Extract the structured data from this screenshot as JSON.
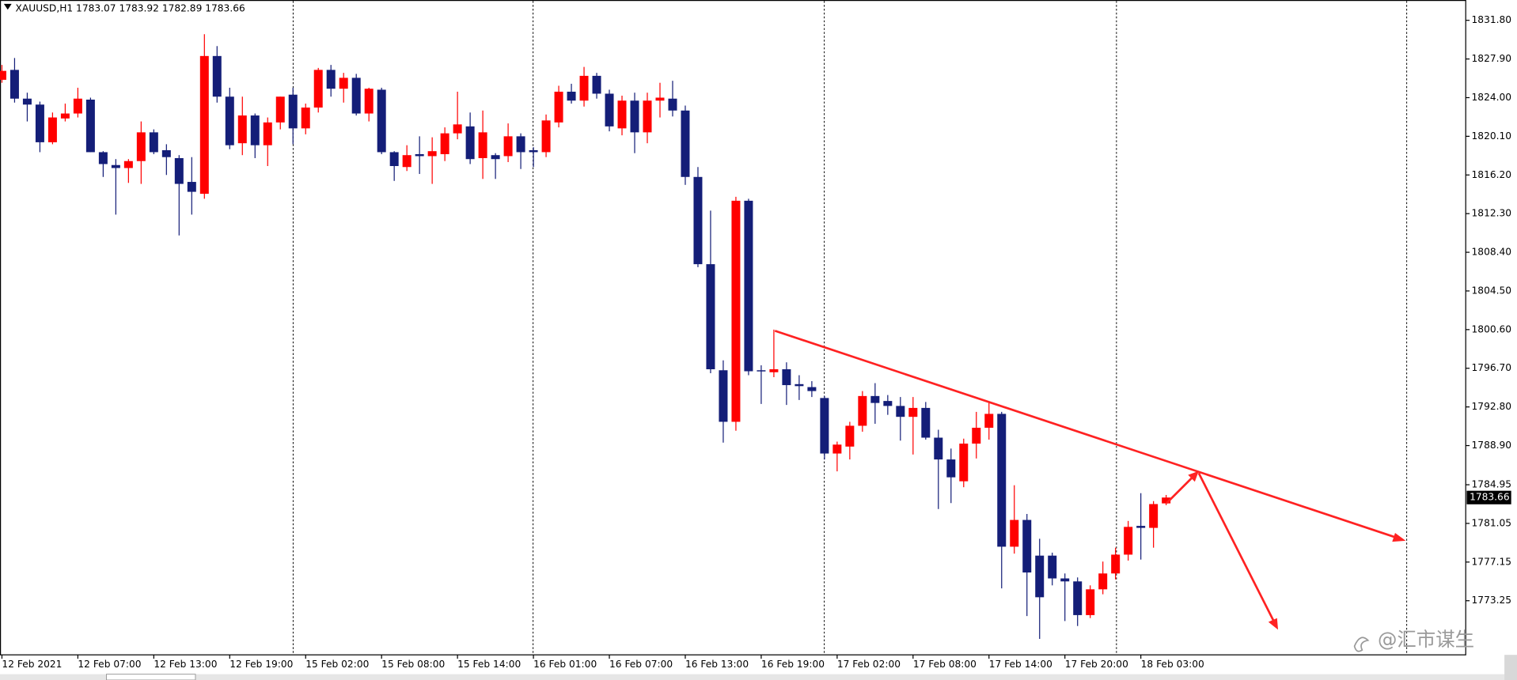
{
  "chart_data": {
    "type": "candlestick",
    "title": "XAUUSD,H1  1783.07 1783.92 1782.89 1783.66",
    "categories": [
      "12 Feb 2021",
      null,
      null,
      null,
      null,
      null,
      "12 Feb 07:00",
      null,
      null,
      null,
      null,
      null,
      "12 Feb 13:00",
      null,
      null,
      null,
      null,
      null,
      "12 Feb 19:00",
      null,
      null,
      null,
      null,
      null,
      "15 Feb 02:00",
      null,
      null,
      null,
      null,
      null,
      "15 Feb 08:00",
      null,
      null,
      null,
      null,
      null,
      "15 Feb 14:00",
      null,
      null,
      null,
      null,
      null,
      "16 Feb 01:00",
      null,
      null,
      null,
      null,
      null,
      "16 Feb 07:00",
      null,
      null,
      null,
      null,
      null,
      "16 Feb 13:00",
      null,
      null,
      null,
      null,
      null,
      "16 Feb 19:00",
      null,
      null,
      null,
      null,
      null,
      "17 Feb 02:00",
      null,
      null,
      null,
      null,
      null,
      "17 Feb 08:00",
      null,
      null,
      null,
      null,
      null,
      "17 Feb 14:00",
      null,
      null,
      null,
      null,
      null,
      "17 Feb 20:00",
      null,
      null,
      null,
      null,
      null,
      "18 Feb 03:00",
      null,
      null
    ],
    "open": [
      1825.8,
      1826.8,
      1823.9,
      1823.3,
      1819.5,
      1821.9,
      1822.4,
      1823.8,
      1818.5,
      1817.2,
      1816.9,
      1817.6,
      1820.5,
      1818.7,
      1817.9,
      1815.5,
      1814.3,
      1828.2,
      1824.1,
      1819.4,
      1822.2,
      1819.2,
      1821.5,
      1824.3,
      1820.9,
      1823.0,
      1826.8,
      1824.9,
      1826.0,
      1822.4,
      1824.8,
      1818.5,
      1817.0,
      1818.3,
      1818.1,
      1818.3,
      1820.4,
      1821.1,
      1817.9,
      1818.2,
      1818.1,
      1820.1,
      1818.7,
      1818.5,
      1821.5,
      1824.6,
      1823.7,
      1826.2,
      1824.4,
      1820.9,
      1823.7,
      1820.5,
      1823.7,
      1823.9,
      1822.7,
      1816.0,
      1807.2,
      1796.5,
      1791.3,
      1813.6,
      1796.5,
      1796.3,
      1796.6,
      1795.1,
      1794.8,
      1793.7,
      1788.1,
      1788.8,
      1790.9,
      1793.9,
      1793.4,
      1792.9,
      1791.8,
      1792.7,
      1789.7,
      1787.5,
      1785.3,
      1789.1,
      1790.7,
      1792.1,
      1778.7,
      1781.4,
      1777.8,
      1777.8,
      1775.5,
      1775.2,
      1771.8,
      1774.4,
      1776.0,
      1777.9,
      1780.8,
      1780.6,
      1783.07
    ],
    "high": [
      1827.3,
      1828.0,
      1824.5,
      1823.6,
      1822.5,
      1823.4,
      1825.0,
      1824.0,
      1818.6,
      1817.8,
      1817.8,
      1821.6,
      1820.8,
      1819.3,
      1818.2,
      1818.0,
      1830.4,
      1829.2,
      1825.0,
      1824.1,
      1822.4,
      1822.0,
      1824.1,
      1825.0,
      1823.4,
      1827.0,
      1827.3,
      1826.5,
      1826.4,
      1825.0,
      1825.0,
      1818.6,
      1819.2,
      1820.1,
      1820.0,
      1821.0,
      1824.6,
      1822.5,
      1822.7,
      1818.4,
      1821.4,
      1820.4,
      1819.0,
      1822.3,
      1825.2,
      1825.4,
      1827.1,
      1826.5,
      1824.8,
      1824.2,
      1824.5,
      1824.5,
      1825.5,
      1825.7,
      1823.2,
      1817.0,
      1812.6,
      1797.5,
      1814.0,
      1813.8,
      1797.0,
      1800.6,
      1797.3,
      1796.0,
      1795.4,
      1793.9,
      1789.3,
      1791.3,
      1794.4,
      1795.2,
      1794.0,
      1793.8,
      1793.8,
      1793.3,
      1790.5,
      1788.6,
      1789.6,
      1792.3,
      1793.3,
      1792.3,
      1784.9,
      1782.0,
      1779.5,
      1778.1,
      1776.0,
      1775.6,
      1774.8,
      1777.2,
      1778.6,
      1781.3,
      1784.1,
      1783.3,
      1783.92
    ],
    "low": [
      1825.5,
      1823.5,
      1821.6,
      1818.5,
      1819.3,
      1821.6,
      1822.0,
      1818.5,
      1816.0,
      1812.2,
      1815.4,
      1815.3,
      1818.3,
      1816.2,
      1810.1,
      1812.2,
      1813.8,
      1823.5,
      1818.8,
      1818.2,
      1817.9,
      1817.1,
      1820.8,
      1819.3,
      1820.3,
      1822.5,
      1824.1,
      1823.5,
      1822.2,
      1821.6,
      1818.3,
      1815.6,
      1816.6,
      1816.3,
      1815.3,
      1817.6,
      1819.8,
      1817.3,
      1815.8,
      1815.8,
      1817.5,
      1816.8,
      1817.0,
      1818.0,
      1821.0,
      1823.4,
      1823.1,
      1823.9,
      1820.6,
      1820.2,
      1818.4,
      1819.4,
      1822.0,
      1822.1,
      1815.2,
      1806.9,
      1796.2,
      1789.2,
      1790.4,
      1796.0,
      1793.1,
      1795.8,
      1793.0,
      1793.5,
      1793.8,
      1787.5,
      1786.3,
      1787.5,
      1790.3,
      1791.1,
      1792.0,
      1789.4,
      1788.0,
      1789.5,
      1782.5,
      1783.1,
      1784.7,
      1787.6,
      1789.5,
      1774.5,
      1778.0,
      1771.7,
      1769.4,
      1774.8,
      1771.2,
      1770.7,
      1771.5,
      1773.9,
      1775.4,
      1777.3,
      1777.4,
      1778.6,
      1782.89
    ],
    "close": [
      1826.7,
      1823.9,
      1823.3,
      1819.5,
      1822.0,
      1822.4,
      1823.9,
      1818.5,
      1817.3,
      1816.9,
      1817.6,
      1820.5,
      1818.5,
      1818.0,
      1815.3,
      1814.5,
      1828.2,
      1824.1,
      1819.2,
      1822.2,
      1819.2,
      1821.5,
      1824.1,
      1820.9,
      1823.0,
      1826.8,
      1824.9,
      1826.0,
      1822.4,
      1824.9,
      1818.5,
      1817.1,
      1818.2,
      1818.1,
      1818.6,
      1820.4,
      1821.3,
      1817.8,
      1820.5,
      1817.8,
      1820.1,
      1818.5,
      1818.5,
      1821.7,
      1824.6,
      1823.7,
      1826.2,
      1824.4,
      1821.1,
      1823.7,
      1820.5,
      1823.7,
      1824.0,
      1822.7,
      1816.0,
      1807.2,
      1796.6,
      1791.3,
      1813.6,
      1796.4,
      1796.4,
      1796.6,
      1795.0,
      1794.9,
      1794.4,
      1788.1,
      1789.0,
      1790.9,
      1793.9,
      1793.2,
      1792.9,
      1791.8,
      1792.7,
      1789.7,
      1787.5,
      1785.7,
      1789.1,
      1790.7,
      1792.1,
      1778.7,
      1781.4,
      1776.1,
      1773.6,
      1775.5,
      1775.2,
      1771.8,
      1774.4,
      1776.0,
      1777.9,
      1780.7,
      1780.6,
      1783.0,
      1783.66
    ],
    "up_color": "#ff0000",
    "down_color": "#141e78",
    "ylim": [
      1767.79,
      1833.85
    ],
    "yticks": [
      {
        "value": 1831.8,
        "label": "1831.80"
      },
      {
        "value": 1827.9,
        "label": "1827.90"
      },
      {
        "value": 1824,
        "label": "1824.00"
      },
      {
        "value": 1820.1,
        "label": "1820.10"
      },
      {
        "value": 1816.2,
        "label": "1816.20"
      },
      {
        "value": 1812.3,
        "label": "1812.30"
      },
      {
        "value": 1808.4,
        "label": "1808.40"
      },
      {
        "value": 1804.5,
        "label": "1804.50"
      },
      {
        "value": 1800.6,
        "label": "1800.60"
      },
      {
        "value": 1796.7,
        "label": "1796.70"
      },
      {
        "value": 1792.8,
        "label": "1792.80"
      },
      {
        "value": 1788.9,
        "label": "1788.90"
      },
      1784.95,
      1781.05,
      1777.15,
      1773.25
    ],
    "grid": false
  },
  "watermark": "@汇市谋生"
}
